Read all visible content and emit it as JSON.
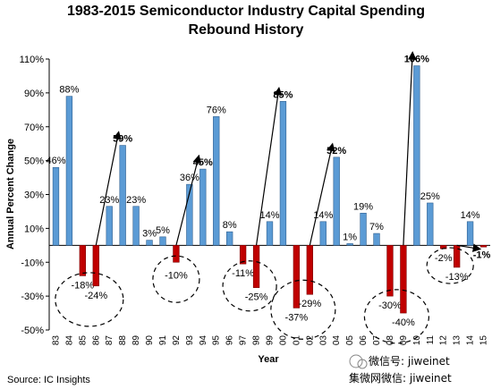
{
  "chart_data": {
    "type": "bar",
    "title_line1": "1983-2015 Semiconductor Industry Capital Spending",
    "title_line2": "Rebound History",
    "xlabel": "Year",
    "ylabel": "Annual Percent Change",
    "ylim": [
      -50,
      110
    ],
    "yticks": [
      -50,
      -30,
      -10,
      10,
      30,
      50,
      70,
      90,
      110
    ],
    "ytick_labels": [
      "-50%",
      "-30%",
      "-10%",
      "10%",
      "30%",
      "50%",
      "70%",
      "90%",
      "110%"
    ],
    "categories": [
      "83",
      "84",
      "85",
      "86",
      "87",
      "88",
      "89",
      "90",
      "91",
      "92",
      "93",
      "94",
      "95",
      "96",
      "97",
      "98",
      "99",
      "00",
      "01",
      "02",
      "03",
      "04",
      "05",
      "06",
      "07",
      "08",
      "09",
      "10",
      "11",
      "12",
      "13",
      "14",
      "15"
    ],
    "values": [
      46,
      88,
      -18,
      -24,
      23,
      59,
      23,
      3,
      5,
      -10,
      36,
      45,
      76,
      8,
      -11,
      -25,
      14,
      85,
      -37,
      -29,
      14,
      52,
      1,
      19,
      7,
      -30,
      -40,
      106,
      25,
      -2,
      -13,
      14,
      -1
    ],
    "labels": [
      "46%",
      "88%",
      "-18%",
      "-24%",
      "23%",
      "59%",
      "23%",
      "3%",
      "5%",
      "-10%",
      "36%",
      "45%",
      "76%",
      "8%",
      "-11%",
      "-25%",
      "14%",
      "85%",
      "-37%",
      "-29%",
      "14%",
      "52%",
      "1%",
      "19%",
      "7%",
      "-30%",
      "-40%",
      "106%",
      "25%",
      "-2%",
      "-13%",
      "14%",
      "-1%"
    ],
    "bold_labels": [
      "59%",
      "45%",
      "85%",
      "52%",
      "106%",
      "-1%"
    ],
    "positive_color": "#5b9bd5",
    "negative_color": "#c00000",
    "grid": false,
    "legend": "none"
  },
  "source": "Source: IC Insights",
  "watermark": {
    "brand": "微信号: jiweinet",
    "sub": "集微网微信: jiweinet"
  }
}
